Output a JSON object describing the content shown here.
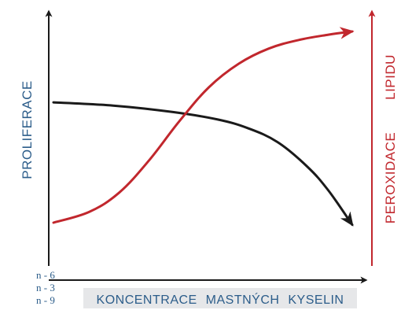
{
  "chart_data": {
    "type": "line",
    "title": "",
    "xlabel": "KONCENTRACE MASTNÝCH KYSELIN",
    "ylabel_left": "PROLIFERACE",
    "ylabel_right_1": "PEROXIDACE",
    "ylabel_right_2": "LIPIDU",
    "x_tick_labels": [
      "n - 6",
      "n - 3",
      "n - 9"
    ],
    "xlim": [
      0,
      100
    ],
    "ylim": [
      0,
      100
    ],
    "grid": false,
    "series": [
      {
        "name": "",
        "axis": "left",
        "color": "#1a1a1a",
        "x": [
          0,
          20,
          40,
          55,
          65,
          75,
          85,
          92,
          100
        ],
        "y": [
          67,
          65.5,
          62.5,
          59,
          55,
          48.5,
          37,
          26,
          10
        ]
      },
      {
        "name": "",
        "axis": "right",
        "color": "#c1272d",
        "x": [
          0,
          12,
          22,
          32,
          42,
          52,
          62,
          72,
          82,
          92,
          100
        ],
        "y": [
          11,
          16,
          25,
          40,
          58,
          74,
          85,
          92,
          96,
          98.5,
          100
        ]
      }
    ],
    "colors": {
      "left_axis": "#2c5d8a",
      "right_axis": "#c1272d",
      "xlabel_band": "#e6e7e9"
    }
  }
}
